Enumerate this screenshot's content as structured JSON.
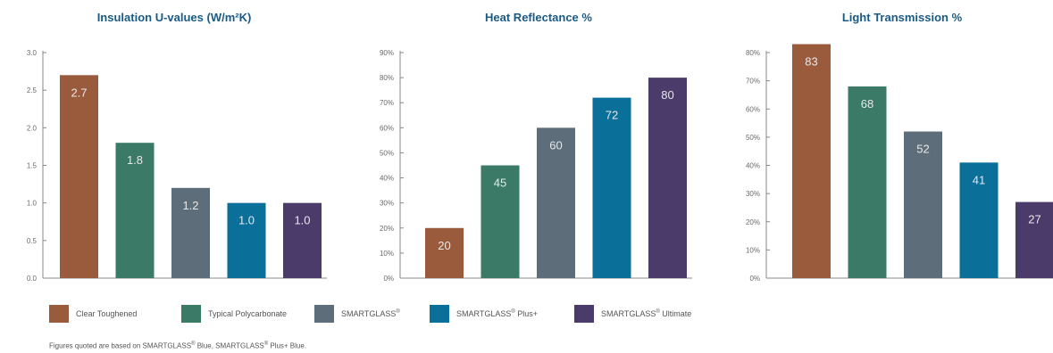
{
  "colors": [
    "#9a5b3c",
    "#3a7a66",
    "#5d6d79",
    "#0a6f99",
    "#4a3b6b"
  ],
  "legend": [
    {
      "label": "Clear Toughened",
      "sup": "",
      "suffix": ""
    },
    {
      "label": "Typical Polycarbonate",
      "sup": "",
      "suffix": ""
    },
    {
      "label": "SMARTGLASS",
      "sup": "®",
      "suffix": ""
    },
    {
      "label": "SMARTGLASS",
      "sup": "®",
      "suffix": "Plus+"
    },
    {
      "label": "SMARTGLASS",
      "sup": "®",
      "suffix": "Ultimate"
    }
  ],
  "footnote": {
    "part1": "Figures quoted are based on SMARTGLASS",
    "sup1": "®",
    "part2": " Blue, SMARTGLASS",
    "sup2": "®",
    "part3": " Plus+ Blue."
  },
  "chart_data": [
    {
      "type": "bar",
      "title": "Insulation U-values (W/m²K)",
      "categories": [
        "Clear Toughened",
        "Typical Polycarbonate",
        "SMARTGLASS®",
        "SMARTGLASS® Plus+",
        "SMARTGLASS® Ultimate"
      ],
      "values": [
        2.7,
        1.8,
        1.2,
        1.0,
        1.0
      ],
      "data_labels": [
        "2.7",
        "1.8",
        "1.2",
        "1.0",
        "1.0"
      ],
      "ylim": [
        0,
        3.0
      ],
      "yticks": [
        0,
        0.5,
        1.0,
        1.5,
        2.0,
        2.5,
        3.0
      ],
      "ytick_labels": [
        "0.0",
        "0.5",
        "1.0",
        "1.5",
        "2.0",
        "2.5",
        "3.0"
      ],
      "xlabel": "",
      "ylabel": "",
      "grid": false,
      "legend": "bottom"
    },
    {
      "type": "bar",
      "title": "Heat Reflectance %",
      "categories": [
        "Clear Toughened",
        "Typical Polycarbonate",
        "SMARTGLASS®",
        "SMARTGLASS® Plus+",
        "SMARTGLASS® Ultimate"
      ],
      "values": [
        20,
        45,
        60,
        72,
        80
      ],
      "data_labels": [
        "20",
        "45",
        "60",
        "72",
        "80"
      ],
      "ylim": [
        0,
        90
      ],
      "yticks": [
        0,
        10,
        20,
        30,
        40,
        50,
        60,
        70,
        80,
        90
      ],
      "ytick_labels": [
        "0%",
        "10%",
        "20%",
        "30%",
        "40%",
        "50%",
        "60%",
        "70%",
        "80%",
        "90%"
      ],
      "xlabel": "",
      "ylabel": "",
      "grid": false,
      "legend": "bottom"
    },
    {
      "type": "bar",
      "title": "Light Transmission %",
      "categories": [
        "Clear Toughened",
        "Typical Polycarbonate",
        "SMARTGLASS®",
        "SMARTGLASS® Plus+",
        "SMARTGLASS® Ultimate"
      ],
      "values": [
        83,
        68,
        52,
        41,
        27
      ],
      "data_labels": [
        "83",
        "68",
        "52",
        "41",
        "27"
      ],
      "ylim": [
        0,
        80
      ],
      "yticks": [
        0,
        10,
        20,
        30,
        40,
        50,
        60,
        70,
        80
      ],
      "ytick_labels": [
        "0%",
        "10%",
        "20%",
        "30%",
        "40%",
        "50%",
        "60%",
        "70%",
        "80%"
      ],
      "xlabel": "",
      "ylabel": "",
      "grid": false,
      "legend": "bottom"
    }
  ]
}
